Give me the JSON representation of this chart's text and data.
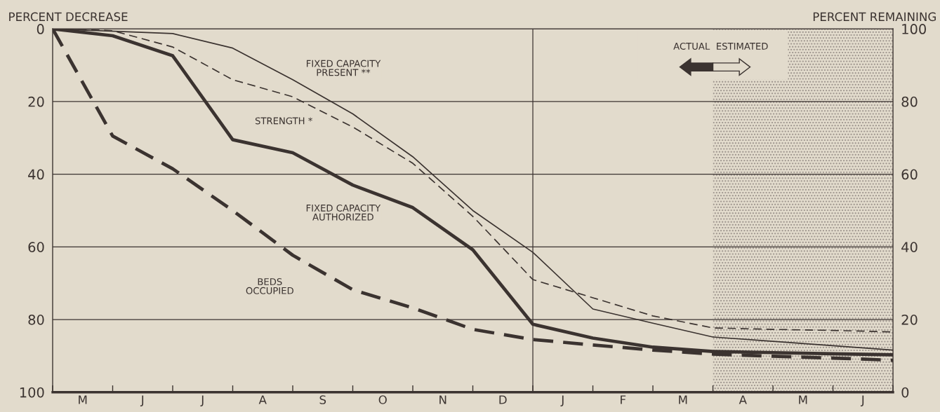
{
  "chart_data": {
    "type": "line",
    "categories": [
      null,
      null,
      null,
      null,
      null,
      null,
      null,
      null,
      null,
      null,
      null,
      null,
      null,
      null,
      null
    ],
    "series": [
      {
        "name": "FIXED CAPACITY\nPRESENT **",
        "color": "#3b3330",
        "line_style": "solid",
        "values": [
          0,
          null,
          1.3,
          5.3,
          14,
          23.4,
          35.2,
          50,
          61.5,
          77.1,
          81,
          84.8,
          86,
          87.2,
          88.4
        ]
      },
      {
        "name": "STRENGTH *",
        "color": "#3b3330",
        "line_style": "dashed",
        "values": [
          0,
          0.5,
          5,
          14,
          18.7,
          27,
          37,
          51.6,
          69,
          74,
          79,
          82.3,
          82.7,
          83,
          83.4
        ]
      },
      {
        "name": "FIXED CAPACITY\nAUTHORIZED",
        "color": "#3b3330",
        "line_style": "solid",
        "values": [
          0,
          1.9,
          7.4,
          30.5,
          34.1,
          43,
          49.2,
          60.8,
          81.3,
          85.1,
          87.6,
          88.8,
          89.1,
          89.4,
          89.7
        ]
      },
      {
        "name": "BEDS\nOCCUPIED",
        "color": "#3b3330",
        "line_style": "dashed",
        "values": [
          0,
          29.5,
          38.5,
          50,
          62.3,
          71.8,
          76.8,
          82.7,
          85.5,
          87,
          88.4,
          89.5,
          90.1,
          90.6,
          91.2
        ]
      }
    ],
    "ylabel": "PERCENT DECREASE",
    "y2label": "PERCENT REMAINING",
    "ylim": [
      100,
      0
    ],
    "yticks": [
      0,
      20,
      40,
      60,
      80,
      100
    ],
    "y2lim": [
      0,
      100
    ],
    "y2ticks": [
      0,
      20,
      40,
      60,
      80,
      100
    ],
    "grid": "y",
    "legend": false,
    "marker": "none",
    "annotations": [
      "ACTUAL",
      "ESTIMATED",
      "M",
      "J",
      "J",
      "A",
      "S",
      "O",
      "N",
      "D",
      "J",
      "F",
      "M",
      "A",
      "M",
      "J"
    ]
  }
}
